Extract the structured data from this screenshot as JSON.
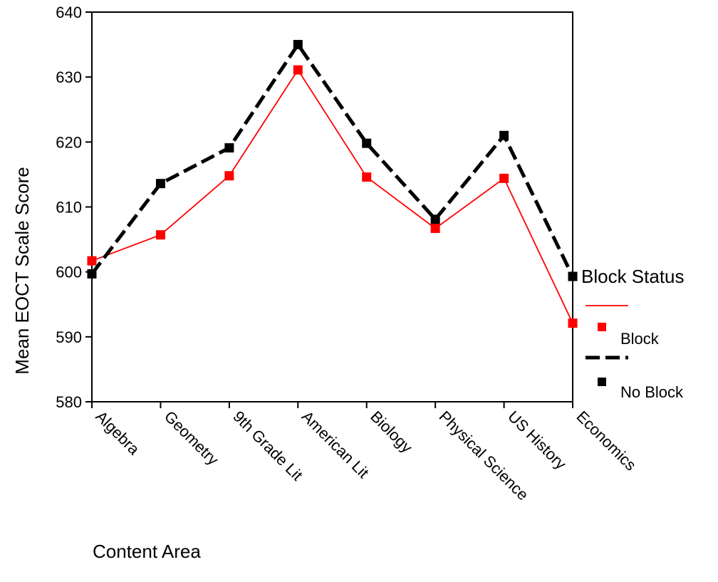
{
  "chart_data": {
    "type": "line",
    "title": "",
    "xlabel": "Content Area",
    "ylabel": "Mean EOCT Scale Score",
    "ylim": [
      580,
      640
    ],
    "yticks": [
      580,
      590,
      600,
      610,
      620,
      630,
      640
    ],
    "categories": [
      "Algebra",
      "Geometry",
      "9th Grade Lit",
      "American Lit",
      "Biology",
      "Physical Science",
      "US History",
      "Economics"
    ],
    "legend_title": "Block Status",
    "legend_position": "right",
    "series": [
      {
        "name": "Block",
        "color": "#ff0000",
        "line_style": "solid",
        "marker": "square",
        "values": [
          601.7,
          605.7,
          614.8,
          631.1,
          614.6,
          606.7,
          614.4,
          592.1
        ]
      },
      {
        "name": "No Block",
        "color": "#000000",
        "line_style": "dashed",
        "marker": "square",
        "values": [
          599.7,
          613.6,
          619.1,
          635.0,
          619.8,
          608.1,
          621.0,
          599.3
        ]
      }
    ]
  }
}
